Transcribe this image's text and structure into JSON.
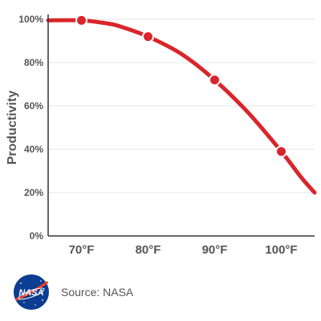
{
  "chart_data": {
    "type": "line",
    "title": "",
    "xlabel": "",
    "ylabel": "Productivity",
    "x_tick_labels": [
      "70°F",
      "80°F",
      "90°F",
      "100°F"
    ],
    "x_ticks": [
      70,
      80,
      90,
      100
    ],
    "y_tick_labels": [
      "0%",
      "20%",
      "40%",
      "60%",
      "80%",
      "100%"
    ],
    "y_ticks": [
      0,
      20,
      40,
      60,
      80,
      100
    ],
    "xlim": [
      65,
      105
    ],
    "ylim": [
      0,
      100
    ],
    "grid": "horizontal",
    "series": [
      {
        "curve": [
          [
            65,
            99.5
          ],
          [
            70,
            99.5
          ],
          [
            74,
            98
          ],
          [
            76,
            96.5
          ],
          [
            80,
            92
          ],
          [
            85,
            84
          ],
          [
            90,
            72
          ],
          [
            95,
            57
          ],
          [
            100,
            39
          ],
          [
            103,
            27
          ],
          [
            105,
            20
          ]
        ],
        "markers": [
          {
            "x": 70,
            "y": 99.5
          },
          {
            "x": 80,
            "y": 92
          },
          {
            "x": 90,
            "y": 72
          },
          {
            "x": 100,
            "y": 39
          }
        ],
        "color": "#d9262b"
      }
    ]
  },
  "footer": {
    "source": "Source: NASA",
    "logo_text": "NASA"
  },
  "colors": {
    "line": "#d9262b",
    "grid": "#e6e6e6",
    "axis": "#333333",
    "logo_blue": "#0b3d91",
    "logo_red": "#fc3d21"
  }
}
